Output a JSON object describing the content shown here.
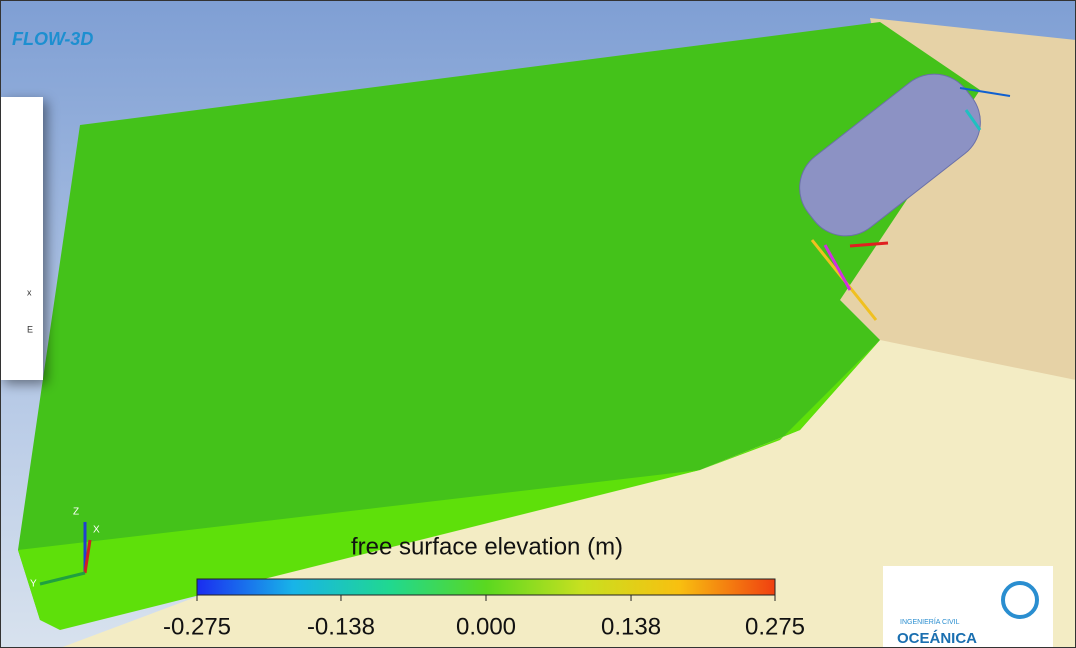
{
  "brand": "FLOW-3D",
  "popup": {
    "lines": [
      "x",
      "E"
    ]
  },
  "axes_triad": {
    "z": "Z",
    "x": "X",
    "y": "Y"
  },
  "colorbar": {
    "title": "free surface elevation (m)",
    "lim": [
      -0.275,
      0.275
    ],
    "ticks": [
      -0.275,
      -0.138,
      {
        "value": 0,
        "label": "0.000"
      },
      0.138,
      0.275
    ],
    "colors": [
      "#1a2cf0",
      "#18b4e8",
      "#20d890",
      "#5ad820",
      "#c8e020",
      "#f8c010",
      "#f04010"
    ]
  },
  "logo": {
    "line1": "INGENIERÍA CIVIL",
    "line2": "OCEÁNICA"
  }
}
